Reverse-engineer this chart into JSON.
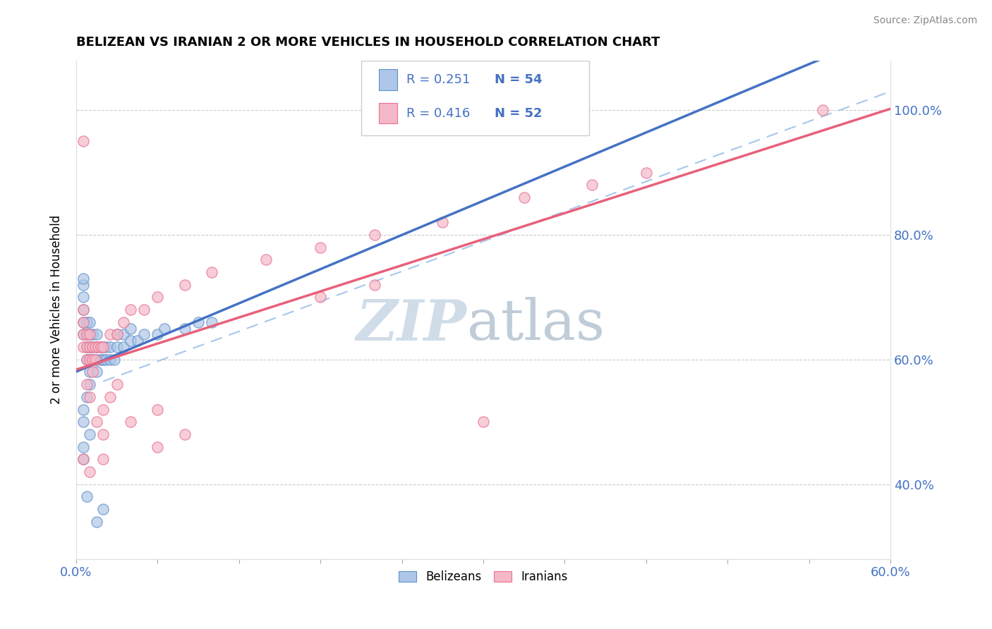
{
  "title": "BELIZEAN VS IRANIAN 2 OR MORE VEHICLES IN HOUSEHOLD CORRELATION CHART",
  "source": "Source: ZipAtlas.com",
  "ylabel": "2 or more Vehicles in Household",
  "xlim": [
    0.0,
    0.6
  ],
  "ylim": [
    0.28,
    1.08
  ],
  "yticks": [
    0.4,
    0.6,
    0.8,
    1.0
  ],
  "ytick_labels": [
    "40.0%",
    "60.0%",
    "80.0%",
    "100.0%"
  ],
  "belizean_color": "#aec6e8",
  "iranian_color": "#f5b8c8",
  "belizean_edge_color": "#6090c8",
  "iranian_edge_color": "#e87090",
  "belizean_line_color": "#4472c4",
  "iranian_line_color": "#e8607a",
  "ref_line_color": "#90b8e8",
  "R_belizean": 0.251,
  "N_belizean": 54,
  "R_iranian": 0.416,
  "N_iranian": 52,
  "legend_color": "#4472c4",
  "watermark_zip": "ZIP",
  "watermark_atlas": "atlas",
  "watermark_color_zip": "#d0dde8",
  "watermark_color_atlas": "#c0ccd8",
  "belizean_points": [
    [
      0.005,
      0.64
    ],
    [
      0.005,
      0.66
    ],
    [
      0.005,
      0.68
    ],
    [
      0.005,
      0.7
    ],
    [
      0.005,
      0.72
    ],
    [
      0.005,
      0.73
    ],
    [
      0.008,
      0.6
    ],
    [
      0.008,
      0.62
    ],
    [
      0.008,
      0.64
    ],
    [
      0.008,
      0.66
    ],
    [
      0.01,
      0.58
    ],
    [
      0.01,
      0.6
    ],
    [
      0.01,
      0.62
    ],
    [
      0.01,
      0.64
    ],
    [
      0.01,
      0.66
    ],
    [
      0.012,
      0.6
    ],
    [
      0.012,
      0.62
    ],
    [
      0.012,
      0.64
    ],
    [
      0.015,
      0.58
    ],
    [
      0.015,
      0.6
    ],
    [
      0.015,
      0.62
    ],
    [
      0.015,
      0.64
    ],
    [
      0.018,
      0.6
    ],
    [
      0.018,
      0.62
    ],
    [
      0.02,
      0.6
    ],
    [
      0.02,
      0.62
    ],
    [
      0.022,
      0.6
    ],
    [
      0.022,
      0.62
    ],
    [
      0.025,
      0.6
    ],
    [
      0.025,
      0.62
    ],
    [
      0.028,
      0.6
    ],
    [
      0.03,
      0.62
    ],
    [
      0.03,
      0.64
    ],
    [
      0.035,
      0.62
    ],
    [
      0.035,
      0.64
    ],
    [
      0.04,
      0.63
    ],
    [
      0.04,
      0.65
    ],
    [
      0.045,
      0.63
    ],
    [
      0.05,
      0.64
    ],
    [
      0.06,
      0.64
    ],
    [
      0.065,
      0.65
    ],
    [
      0.08,
      0.65
    ],
    [
      0.09,
      0.66
    ],
    [
      0.1,
      0.66
    ],
    [
      0.005,
      0.5
    ],
    [
      0.005,
      0.52
    ],
    [
      0.008,
      0.54
    ],
    [
      0.01,
      0.56
    ],
    [
      0.005,
      0.44
    ],
    [
      0.005,
      0.46
    ],
    [
      0.01,
      0.48
    ],
    [
      0.008,
      0.38
    ],
    [
      0.02,
      0.36
    ],
    [
      0.015,
      0.34
    ]
  ],
  "iranian_points": [
    [
      0.005,
      0.62
    ],
    [
      0.005,
      0.64
    ],
    [
      0.005,
      0.66
    ],
    [
      0.005,
      0.68
    ],
    [
      0.008,
      0.6
    ],
    [
      0.008,
      0.62
    ],
    [
      0.008,
      0.64
    ],
    [
      0.01,
      0.6
    ],
    [
      0.01,
      0.62
    ],
    [
      0.01,
      0.64
    ],
    [
      0.012,
      0.6
    ],
    [
      0.012,
      0.62
    ],
    [
      0.014,
      0.6
    ],
    [
      0.014,
      0.62
    ],
    [
      0.016,
      0.62
    ],
    [
      0.018,
      0.62
    ],
    [
      0.02,
      0.62
    ],
    [
      0.025,
      0.64
    ],
    [
      0.03,
      0.64
    ],
    [
      0.035,
      0.66
    ],
    [
      0.04,
      0.68
    ],
    [
      0.05,
      0.68
    ],
    [
      0.06,
      0.7
    ],
    [
      0.08,
      0.72
    ],
    [
      0.1,
      0.74
    ],
    [
      0.14,
      0.76
    ],
    [
      0.18,
      0.78
    ],
    [
      0.22,
      0.8
    ],
    [
      0.27,
      0.82
    ],
    [
      0.33,
      0.86
    ],
    [
      0.38,
      0.88
    ],
    [
      0.42,
      0.9
    ],
    [
      0.005,
      0.95
    ],
    [
      0.55,
      1.0
    ],
    [
      0.008,
      0.56
    ],
    [
      0.01,
      0.54
    ],
    [
      0.012,
      0.58
    ],
    [
      0.02,
      0.52
    ],
    [
      0.025,
      0.54
    ],
    [
      0.03,
      0.56
    ],
    [
      0.015,
      0.5
    ],
    [
      0.02,
      0.48
    ],
    [
      0.04,
      0.5
    ],
    [
      0.06,
      0.52
    ],
    [
      0.18,
      0.7
    ],
    [
      0.22,
      0.72
    ],
    [
      0.005,
      0.44
    ],
    [
      0.01,
      0.42
    ],
    [
      0.02,
      0.44
    ],
    [
      0.06,
      0.46
    ],
    [
      0.08,
      0.48
    ],
    [
      0.3,
      0.5
    ]
  ]
}
